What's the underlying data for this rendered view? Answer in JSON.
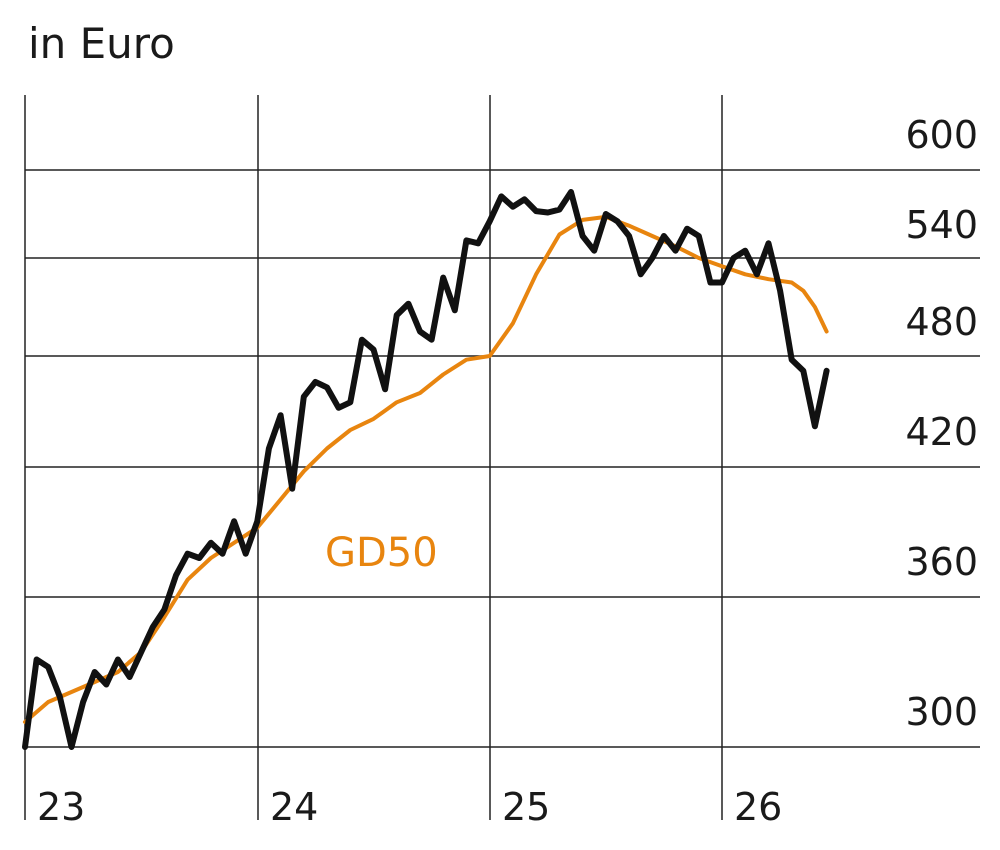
{
  "chart_data": {
    "type": "line",
    "title": "",
    "unit_label": "in Euro",
    "xlabel": "",
    "ylabel": "",
    "x_tick_labels": [
      "23",
      "24",
      "25",
      "26"
    ],
    "y_tick_labels": [
      "300",
      "360",
      "420",
      "480",
      "540",
      "600"
    ],
    "grid": true,
    "x_range": [
      2023.0,
      2026.45
    ],
    "series": [
      {
        "name": "",
        "color": "#111111",
        "x": [
          2023.0,
          2023.05,
          2023.1,
          2023.15,
          2023.2,
          2023.25,
          2023.3,
          2023.35,
          2023.4,
          2023.45,
          2023.5,
          2023.55,
          2023.6,
          2023.65,
          2023.7,
          2023.75,
          2023.8,
          2023.85,
          2023.9,
          2023.95,
          2024.0,
          2024.05,
          2024.1,
          2024.15,
          2024.2,
          2024.25,
          2024.3,
          2024.35,
          2024.4,
          2024.45,
          2024.5,
          2024.55,
          2024.6,
          2024.65,
          2024.7,
          2024.75,
          2024.8,
          2024.85,
          2024.9,
          2024.95,
          2025.0,
          2025.05,
          2025.1,
          2025.15,
          2025.2,
          2025.25,
          2025.3,
          2025.35,
          2025.4,
          2025.45,
          2025.5,
          2025.55,
          2025.6,
          2025.65,
          2025.7,
          2025.75,
          2025.8,
          2025.85,
          2025.9,
          2025.95,
          2026.0,
          2026.05,
          2026.1,
          2026.15,
          2026.2,
          2026.25,
          2026.3,
          2026.35,
          2026.4,
          2026.45
        ],
        "values": [
          300,
          335,
          332,
          320,
          300,
          318,
          330,
          325,
          335,
          328,
          338,
          348,
          355,
          370,
          380,
          378,
          385,
          380,
          395,
          380,
          395,
          430,
          448,
          410,
          458,
          466,
          463,
          452,
          455,
          490,
          484,
          462,
          505,
          512,
          495,
          490,
          528,
          508,
          552,
          550,
          565,
          582,
          575,
          580,
          572,
          571,
          573,
          585,
          555,
          545,
          570,
          565,
          555,
          530,
          540,
          555,
          545,
          560,
          555,
          525,
          525,
          540,
          545,
          530,
          550,
          520,
          478,
          472,
          442,
          472
        ]
      },
      {
        "name": "GD50",
        "color": "#E8850F",
        "x": [
          2023.0,
          2023.1,
          2023.2,
          2023.3,
          2023.4,
          2023.5,
          2023.6,
          2023.7,
          2023.8,
          2023.9,
          2024.0,
          2024.1,
          2024.2,
          2024.3,
          2024.4,
          2024.5,
          2024.6,
          2024.7,
          2024.8,
          2024.9,
          2025.0,
          2025.1,
          2025.2,
          2025.3,
          2025.4,
          2025.5,
          2025.6,
          2025.7,
          2025.8,
          2025.9,
          2026.0,
          2026.1,
          2026.2,
          2026.3,
          2026.35,
          2026.4,
          2026.45
        ],
        "values": [
          310,
          318,
          322,
          326,
          330,
          338,
          352,
          368,
          378,
          385,
          392,
          405,
          418,
          430,
          440,
          446,
          455,
          460,
          470,
          478,
          480,
          500,
          530,
          556,
          566,
          568,
          562,
          555,
          548,
          540,
          535,
          530,
          527,
          525,
          520,
          510,
          495
        ]
      }
    ]
  }
}
